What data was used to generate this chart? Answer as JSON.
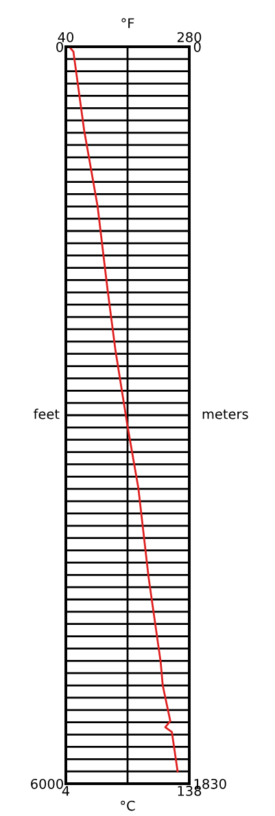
{
  "chart_data": {
    "type": "line",
    "xlabel": "°C",
    "x2label": "°F",
    "ylabel": "feet",
    "y2label": "meters",
    "xlim": [
      4,
      138
    ],
    "xticks": [
      4,
      {
        "value": 71,
        "label": null
      },
      138
    ],
    "x2lim": [
      40,
      280
    ],
    "x2ticks": [
      40,
      {
        "value": 160,
        "label": null
      },
      280
    ],
    "ylim": [
      6000,
      0
    ],
    "yticks": [
      0,
      {
        "value": 100,
        "label": null
      },
      {
        "value": 200,
        "label": null
      },
      {
        "value": 300,
        "label": null
      },
      {
        "value": 400,
        "label": null
      },
      {
        "value": 500,
        "label": null
      },
      {
        "value": 600,
        "label": null
      },
      {
        "value": 700,
        "label": null
      },
      {
        "value": 800,
        "label": null
      },
      {
        "value": 900,
        "label": null
      },
      {
        "value": 1000,
        "label": null
      },
      {
        "value": 1100,
        "label": null
      },
      {
        "value": 1200,
        "label": null
      },
      {
        "value": 1300,
        "label": null
      },
      {
        "value": 1400,
        "label": null
      },
      {
        "value": 1500,
        "label": null
      },
      {
        "value": 1600,
        "label": null
      },
      {
        "value": 1700,
        "label": null
      },
      {
        "value": 1800,
        "label": null
      },
      {
        "value": 1900,
        "label": null
      },
      {
        "value": 2000,
        "label": null
      },
      {
        "value": 2100,
        "label": null
      },
      {
        "value": 2200,
        "label": null
      },
      {
        "value": 2300,
        "label": null
      },
      {
        "value": 2400,
        "label": null
      },
      {
        "value": 2500,
        "label": null
      },
      {
        "value": 2600,
        "label": null
      },
      {
        "value": 2700,
        "label": null
      },
      {
        "value": 2800,
        "label": null
      },
      {
        "value": 2900,
        "label": null
      },
      {
        "value": 3000,
        "label": null
      },
      {
        "value": 3100,
        "label": null
      },
      {
        "value": 3200,
        "label": null
      },
      {
        "value": 3300,
        "label": null
      },
      {
        "value": 3400,
        "label": null
      },
      {
        "value": 3500,
        "label": null
      },
      {
        "value": 3600,
        "label": null
      },
      {
        "value": 3700,
        "label": null
      },
      {
        "value": 3800,
        "label": null
      },
      {
        "value": 3900,
        "label": null
      },
      {
        "value": 4000,
        "label": null
      },
      {
        "value": 4100,
        "label": null
      },
      {
        "value": 4200,
        "label": null
      },
      {
        "value": 4300,
        "label": null
      },
      {
        "value": 4400,
        "label": null
      },
      {
        "value": 4500,
        "label": null
      },
      {
        "value": 4600,
        "label": null
      },
      {
        "value": 4700,
        "label": null
      },
      {
        "value": 4800,
        "label": null
      },
      {
        "value": 4900,
        "label": null
      },
      {
        "value": 5000,
        "label": null
      },
      {
        "value": 5100,
        "label": null
      },
      {
        "value": 5200,
        "label": null
      },
      {
        "value": 5300,
        "label": null
      },
      {
        "value": 5400,
        "label": null
      },
      {
        "value": 5500,
        "label": null
      },
      {
        "value": 5600,
        "label": null
      },
      {
        "value": 5700,
        "label": null
      },
      {
        "value": 5800,
        "label": null
      },
      {
        "value": 5900,
        "label": null
      },
      6000
    ],
    "y2lim": [
      1830,
      0
    ],
    "y2ticks": [
      0,
      1830
    ],
    "grid": true,
    "line_style": "solid",
    "marker": "none",
    "series": [
      {
        "color": "#e02020",
        "axis": "x2",
        "x": [
          46.7,
          54.7,
          75.6,
          101.8,
          120.9,
          136.4,
          160,
          180.9,
          200.9,
          224.4,
          228.4,
          243.1,
          233.3,
          246.2,
          257.3
        ],
        "values": [
          0,
          40,
          680,
          1300,
          1970,
          2470,
          3090,
          3590,
          4320,
          5010,
          5200,
          5490,
          5540,
          5580,
          5900
        ]
      }
    ]
  }
}
